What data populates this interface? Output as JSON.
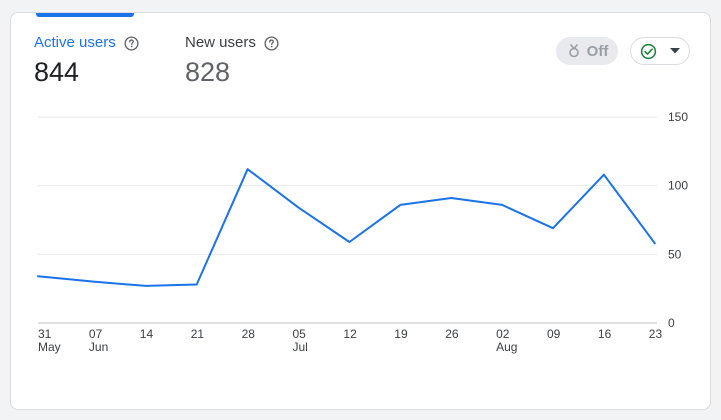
{
  "metrics": {
    "active_users": {
      "label": "Active users",
      "value": "844"
    },
    "new_users": {
      "label": "New users",
      "value": "828"
    }
  },
  "controls": {
    "off_label": "Off",
    "off_icon": "badge-icon",
    "dropdown_icon": "check-circle-icon"
  },
  "colors": {
    "accent": "#1a73e8",
    "line": "#1a73e8",
    "check": "#188038",
    "grid": "#e8eaed"
  },
  "chart_data": {
    "type": "line",
    "title": "",
    "xlabel": "",
    "ylabel": "",
    "ylim": [
      0,
      150
    ],
    "y_ticks": [
      "0",
      "50",
      "100",
      "150"
    ],
    "y_tick_values": [
      0,
      50,
      100,
      150
    ],
    "grid": true,
    "x": [
      "31 May",
      "07 Jun",
      "14",
      "21",
      "28",
      "05 Jul",
      "12",
      "19",
      "26",
      "02 Aug",
      "09",
      "16",
      "23"
    ],
    "x_tick_labels": [
      {
        "top": "31",
        "bottom": "May"
      },
      {
        "top": "07",
        "bottom": "Jun"
      },
      {
        "top": "14",
        "bottom": ""
      },
      {
        "top": "21",
        "bottom": ""
      },
      {
        "top": "28",
        "bottom": ""
      },
      {
        "top": "05",
        "bottom": "Jul"
      },
      {
        "top": "12",
        "bottom": ""
      },
      {
        "top": "19",
        "bottom": ""
      },
      {
        "top": "26",
        "bottom": ""
      },
      {
        "top": "02",
        "bottom": "Aug"
      },
      {
        "top": "09",
        "bottom": ""
      },
      {
        "top": "16",
        "bottom": ""
      },
      {
        "top": "23",
        "bottom": ""
      }
    ],
    "series": [
      {
        "values": [
          34,
          30,
          27,
          28,
          112,
          84,
          59,
          86,
          91,
          86,
          69,
          108,
          58
        ]
      }
    ]
  }
}
